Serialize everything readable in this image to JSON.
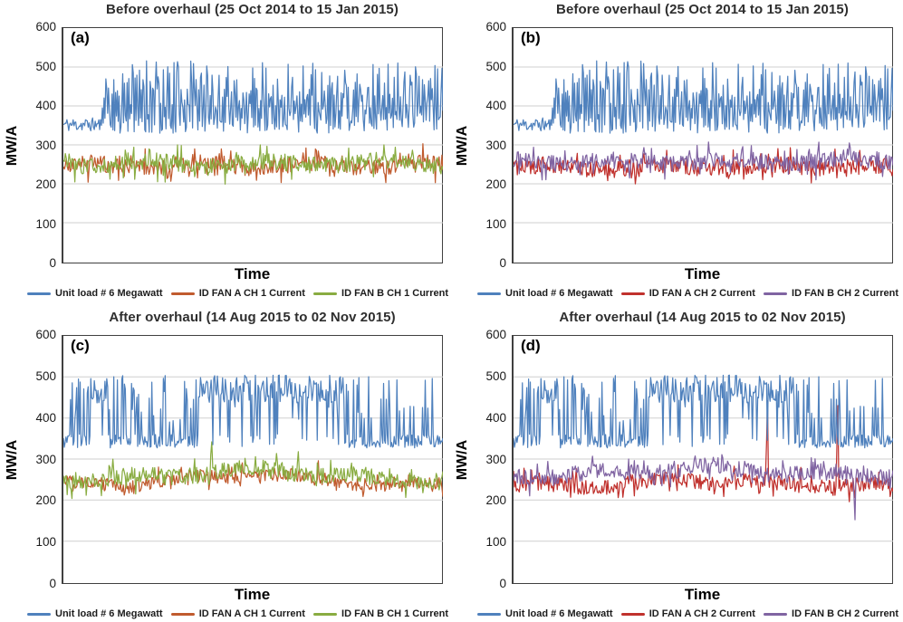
{
  "figure": {
    "description": "Four line charts comparing unit load and ID fan currents before and after overhaul",
    "grid_color": "#cfcfcf",
    "axis_color": "#404040"
  },
  "chart_data": [
    {
      "type": "line",
      "panel_label": "(a)",
      "title": "Before overhaul (25 Oct 2014 to 15 Jan 2015)",
      "xlabel": "Time",
      "ylabel": "MW/A",
      "ylim": [
        0,
        600
      ],
      "yticks": [
        0,
        100,
        200,
        300,
        400,
        500,
        600
      ],
      "grid": "horizontal",
      "legend_position": "bottom",
      "x_axis_ticks": "none (continuous time)",
      "series": [
        {
          "name": "Unit load # 6 Megawatt",
          "color": "#4F81BD",
          "pattern": "load_before",
          "seed": 11,
          "n": 430,
          "low_base": 352,
          "low_until": 0.1,
          "high_min": 385,
          "min": 330,
          "max": 516,
          "observed_range": [
            330,
            515
          ]
        },
        {
          "name": "ID FAN A CH 1 Current",
          "color": "#C05B2E",
          "pattern": "fan",
          "seed": 21,
          "n": 400,
          "base": 247,
          "noise": 22,
          "wobble": 6,
          "hump": 0,
          "min": 203,
          "max": 303,
          "observed_range": [
            205,
            300
          ]
        },
        {
          "name": "ID FAN B CH 1 Current",
          "color": "#89AC41",
          "pattern": "fan",
          "seed": 31,
          "n": 400,
          "base": 252,
          "noise": 22,
          "wobble": 6,
          "hump": 0,
          "min": 196,
          "max": 300,
          "observed_range": [
            200,
            300
          ]
        }
      ]
    },
    {
      "type": "line",
      "panel_label": "(b)",
      "title": "Before overhaul (25 Oct 2014 to 15 Jan 2015)",
      "xlabel": "Time",
      "ylabel": "MW/A",
      "ylim": [
        0,
        600
      ],
      "yticks": [
        0,
        100,
        200,
        300,
        400,
        500,
        600
      ],
      "grid": "horizontal",
      "legend_position": "bottom",
      "x_axis_ticks": "none (continuous time)",
      "series": [
        {
          "name": "Unit load # 6 Megawatt",
          "color": "#4F81BD",
          "pattern": "load_before",
          "seed": 11,
          "n": 430,
          "low_base": 352,
          "low_until": 0.1,
          "high_min": 385,
          "min": 330,
          "max": 516,
          "observed_range": [
            330,
            515
          ]
        },
        {
          "name": "ID FAN A CH 2 Current",
          "color": "#C0312D",
          "pattern": "fan",
          "seed": 41,
          "n": 400,
          "base": 243,
          "noise": 22,
          "wobble": 6,
          "hump": 0,
          "min": 185,
          "max": 300,
          "observed_range": [
            190,
            300
          ]
        },
        {
          "name": "ID FAN B CH 2 Current",
          "color": "#8064A2",
          "pattern": "fan",
          "seed": 51,
          "n": 400,
          "base": 258,
          "noise": 20,
          "wobble": 6,
          "hump": 0,
          "min": 210,
          "max": 308,
          "observed_range": [
            210,
            305
          ]
        }
      ]
    },
    {
      "type": "line",
      "panel_label": "(c)",
      "title": "After overhaul (14 Aug 2015 to 02 Nov 2015)",
      "xlabel": "Time",
      "ylabel": "MW/A",
      "ylim": [
        0,
        600
      ],
      "yticks": [
        0,
        100,
        200,
        300,
        400,
        500,
        600
      ],
      "grid": "horizontal",
      "legend_position": "bottom",
      "x_axis_ticks": "none (continuous time)",
      "series": [
        {
          "name": "Unit load # 6 Megawatt",
          "color": "#4F81BD",
          "pattern": "load_after",
          "seed": 61,
          "n": 430,
          "low_base": 344,
          "bursts": [
            [
              0.07,
              0.12
            ],
            [
              0.36,
              0.74
            ]
          ],
          "min": 326,
          "max": 507,
          "observed_range": [
            330,
            505
          ]
        },
        {
          "name": "ID FAN A CH 1 Current",
          "color": "#C05B2E",
          "pattern": "fan",
          "seed": 71,
          "n": 400,
          "base": 238,
          "noise": 16,
          "wobble": 6,
          "hump": 24,
          "min": 196,
          "max": 310,
          "observed_range": [
            200,
            300
          ]
        },
        {
          "name": "ID FAN B CH 1 Current",
          "color": "#89AC41",
          "pattern": "fan",
          "seed": 81,
          "n": 400,
          "base": 251,
          "noise": 20,
          "wobble": 7,
          "hump": 22,
          "min": 196,
          "max": 320,
          "spikes": [
            {
              "at": 0.39,
              "v": 342
            },
            {
              "at": 0.62,
              "v": 318
            }
          ],
          "observed_range": [
            200,
            345
          ]
        }
      ]
    },
    {
      "type": "line",
      "panel_label": "(d)",
      "title": "After overhaul (14 Aug 2015 to 02 Nov 2015)",
      "xlabel": "Time",
      "ylabel": "MW/A",
      "ylim": [
        0,
        600
      ],
      "yticks": [
        0,
        100,
        200,
        300,
        400,
        500,
        600
      ],
      "grid": "horizontal",
      "legend_position": "bottom",
      "x_axis_ticks": "none (continuous time)",
      "series": [
        {
          "name": "Unit load # 6 Megawatt",
          "color": "#4F81BD",
          "pattern": "load_after",
          "seed": 61,
          "n": 430,
          "low_base": 344,
          "bursts": [
            [
              0.07,
              0.12
            ],
            [
              0.36,
              0.74
            ]
          ],
          "min": 326,
          "max": 507,
          "observed_range": [
            330,
            505
          ]
        },
        {
          "name": "ID FAN A CH 2 Current",
          "color": "#C0312D",
          "pattern": "fan",
          "seed": 91,
          "n": 400,
          "base": 234,
          "noise": 19,
          "wobble": 6,
          "hump": 14,
          "min": 183,
          "max": 300,
          "spikes": [
            {
              "at": 0.67,
              "v": 442
            },
            {
              "at": 0.855,
              "v": 430
            }
          ],
          "observed_range": [
            185,
            440
          ]
        },
        {
          "name": "ID FAN B CH 2 Current",
          "color": "#8064A2",
          "pattern": "fan",
          "seed": 101,
          "n": 400,
          "base": 261,
          "noise": 20,
          "wobble": 7,
          "hump": 16,
          "min": 150,
          "max": 318,
          "spikes": [
            {
              "at": 0.9,
              "v": 152
            }
          ],
          "observed_range": [
            150,
            315
          ]
        }
      ]
    }
  ]
}
